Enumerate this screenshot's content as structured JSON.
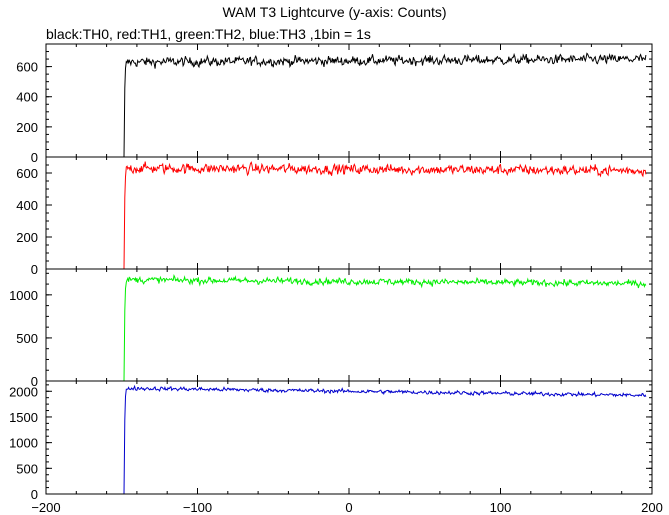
{
  "chart_data": {
    "type": "line",
    "title": "WAM T3 Lightcurve (y-axis: Counts)",
    "subtitle": "black:TH0, red:TH1, green:TH2, blue:TH3 ,1bin = 1s",
    "xlim": [
      -200,
      200
    ],
    "x_ticks": [
      -200,
      -100,
      0,
      100,
      200
    ],
    "x_tick_labels": [
      "-200",
      "-100",
      "0",
      "100",
      "200"
    ],
    "grid": false,
    "panels": [
      {
        "series_name": "TH0",
        "color": "#000000",
        "ylim": [
          0,
          750
        ],
        "y_ticks": [
          0,
          200,
          400,
          600
        ],
        "y_tick_labels": [
          "0",
          "200",
          "400",
          "600"
        ],
        "onset_x": -148,
        "pre_level": 0,
        "post_level": 630,
        "post_end_level": 650,
        "noise": 25
      },
      {
        "series_name": "TH1",
        "color": "#ff0000",
        "ylim": [
          0,
          700
        ],
        "y_ticks": [
          0,
          200,
          400,
          600
        ],
        "y_tick_labels": [
          "0",
          "200",
          "400",
          "600"
        ],
        "onset_x": -148,
        "pre_level": 0,
        "post_level": 630,
        "post_end_level": 615,
        "noise": 25
      },
      {
        "series_name": "TH2",
        "color": "#00ee00",
        "ylim": [
          0,
          1300
        ],
        "y_ticks": [
          0,
          500,
          1000
        ],
        "y_tick_labels": [
          "0",
          "500",
          "1000"
        ],
        "onset_x": -148,
        "pre_level": 0,
        "post_level": 1175,
        "post_end_level": 1130,
        "noise": 30
      },
      {
        "series_name": "TH3",
        "color": "#0000cc",
        "ylim": [
          0,
          2200
        ],
        "y_ticks": [
          0,
          500,
          1000,
          1500,
          2000
        ],
        "y_tick_labels": [
          "0",
          "500",
          "1000",
          "1500",
          "2000"
        ],
        "onset_x": -148,
        "pre_level": 0,
        "post_level": 2060,
        "post_end_level": 1920,
        "noise": 30
      }
    ]
  }
}
